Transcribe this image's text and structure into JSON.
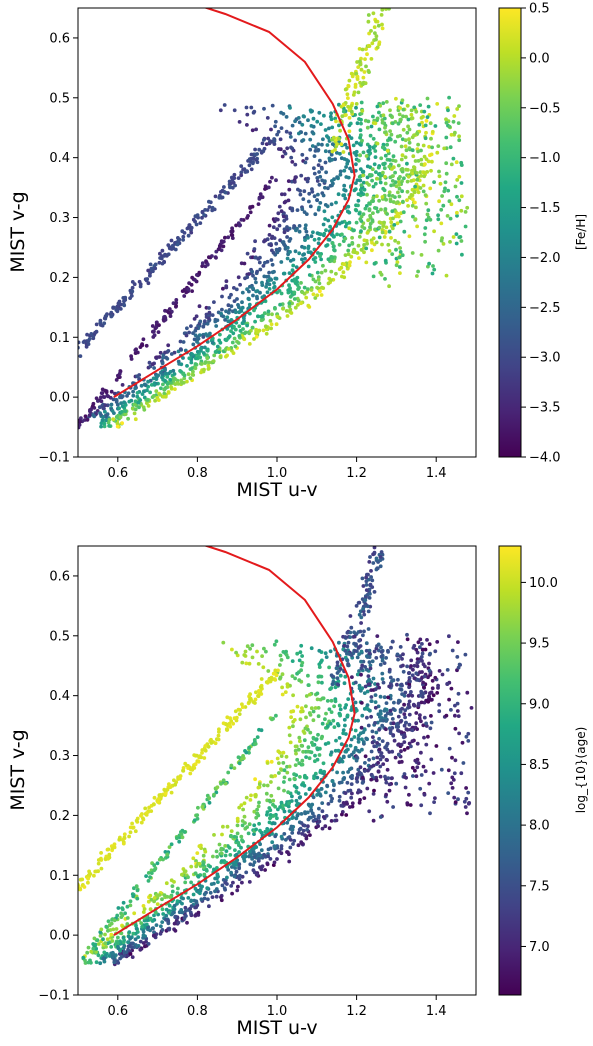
{
  "chart_data": [
    {
      "type": "scatter",
      "xlabel": "MIST u-v",
      "ylabel": "MIST v-g",
      "xlim": [
        0.5,
        1.5
      ],
      "ylim": [
        -0.1,
        0.65
      ],
      "xticks": [
        "0.6",
        "0.8",
        "1.0",
        "1.2",
        "1.4"
      ],
      "yticks": [
        "−0.1",
        "0.0",
        "0.1",
        "0.2",
        "0.3",
        "0.4",
        "0.5",
        "0.6"
      ],
      "colorbar": {
        "label": "[Fe/H]",
        "min": -4.0,
        "max": 0.5,
        "ticks": [
          "−4.0",
          "−3.5",
          "−3.0",
          "−2.5",
          "−2.0",
          "−1.5",
          "−1.0",
          "−0.5",
          "0.0",
          "0.5"
        ],
        "colormap": "viridis"
      },
      "curve": {
        "color": "#e31a1c",
        "points": [
          [
            0.59,
            0.0
          ],
          [
            0.7,
            0.045
          ],
          [
            0.8,
            0.085
          ],
          [
            0.9,
            0.13
          ],
          [
            1.0,
            0.18
          ],
          [
            1.08,
            0.23
          ],
          [
            1.14,
            0.28
          ],
          [
            1.18,
            0.33
          ],
          [
            1.195,
            0.37
          ],
          [
            1.18,
            0.43
          ],
          [
            1.14,
            0.49
          ],
          [
            1.07,
            0.56
          ],
          [
            0.98,
            0.61
          ],
          [
            0.87,
            0.64
          ],
          [
            0.8,
            0.655
          ]
        ]
      }
    },
    {
      "type": "scatter",
      "xlabel": "MIST u-v",
      "ylabel": "MIST v-g",
      "xlim": [
        0.5,
        1.5
      ],
      "ylim": [
        -0.1,
        0.65
      ],
      "xticks": [
        "0.6",
        "0.8",
        "1.0",
        "1.2",
        "1.4"
      ],
      "yticks": [
        "−0.1",
        "0.0",
        "0.1",
        "0.2",
        "0.3",
        "0.4",
        "0.5",
        "0.6"
      ],
      "colorbar": {
        "label": "log_{10}(age)",
        "min": 6.6,
        "max": 10.3,
        "ticks": [
          "7.0",
          "7.5",
          "8.0",
          "8.5",
          "9.0",
          "9.5",
          "10.0"
        ],
        "colormap": "viridis"
      },
      "curve": {
        "color": "#e31a1c",
        "points": [
          [
            0.59,
            0.0
          ],
          [
            0.7,
            0.045
          ],
          [
            0.8,
            0.085
          ],
          [
            0.9,
            0.13
          ],
          [
            1.0,
            0.18
          ],
          [
            1.08,
            0.23
          ],
          [
            1.14,
            0.28
          ],
          [
            1.18,
            0.33
          ],
          [
            1.195,
            0.37
          ],
          [
            1.18,
            0.43
          ],
          [
            1.14,
            0.49
          ],
          [
            1.07,
            0.56
          ],
          [
            0.98,
            0.61
          ],
          [
            0.87,
            0.64
          ],
          [
            0.8,
            0.655
          ]
        ]
      }
    }
  ]
}
